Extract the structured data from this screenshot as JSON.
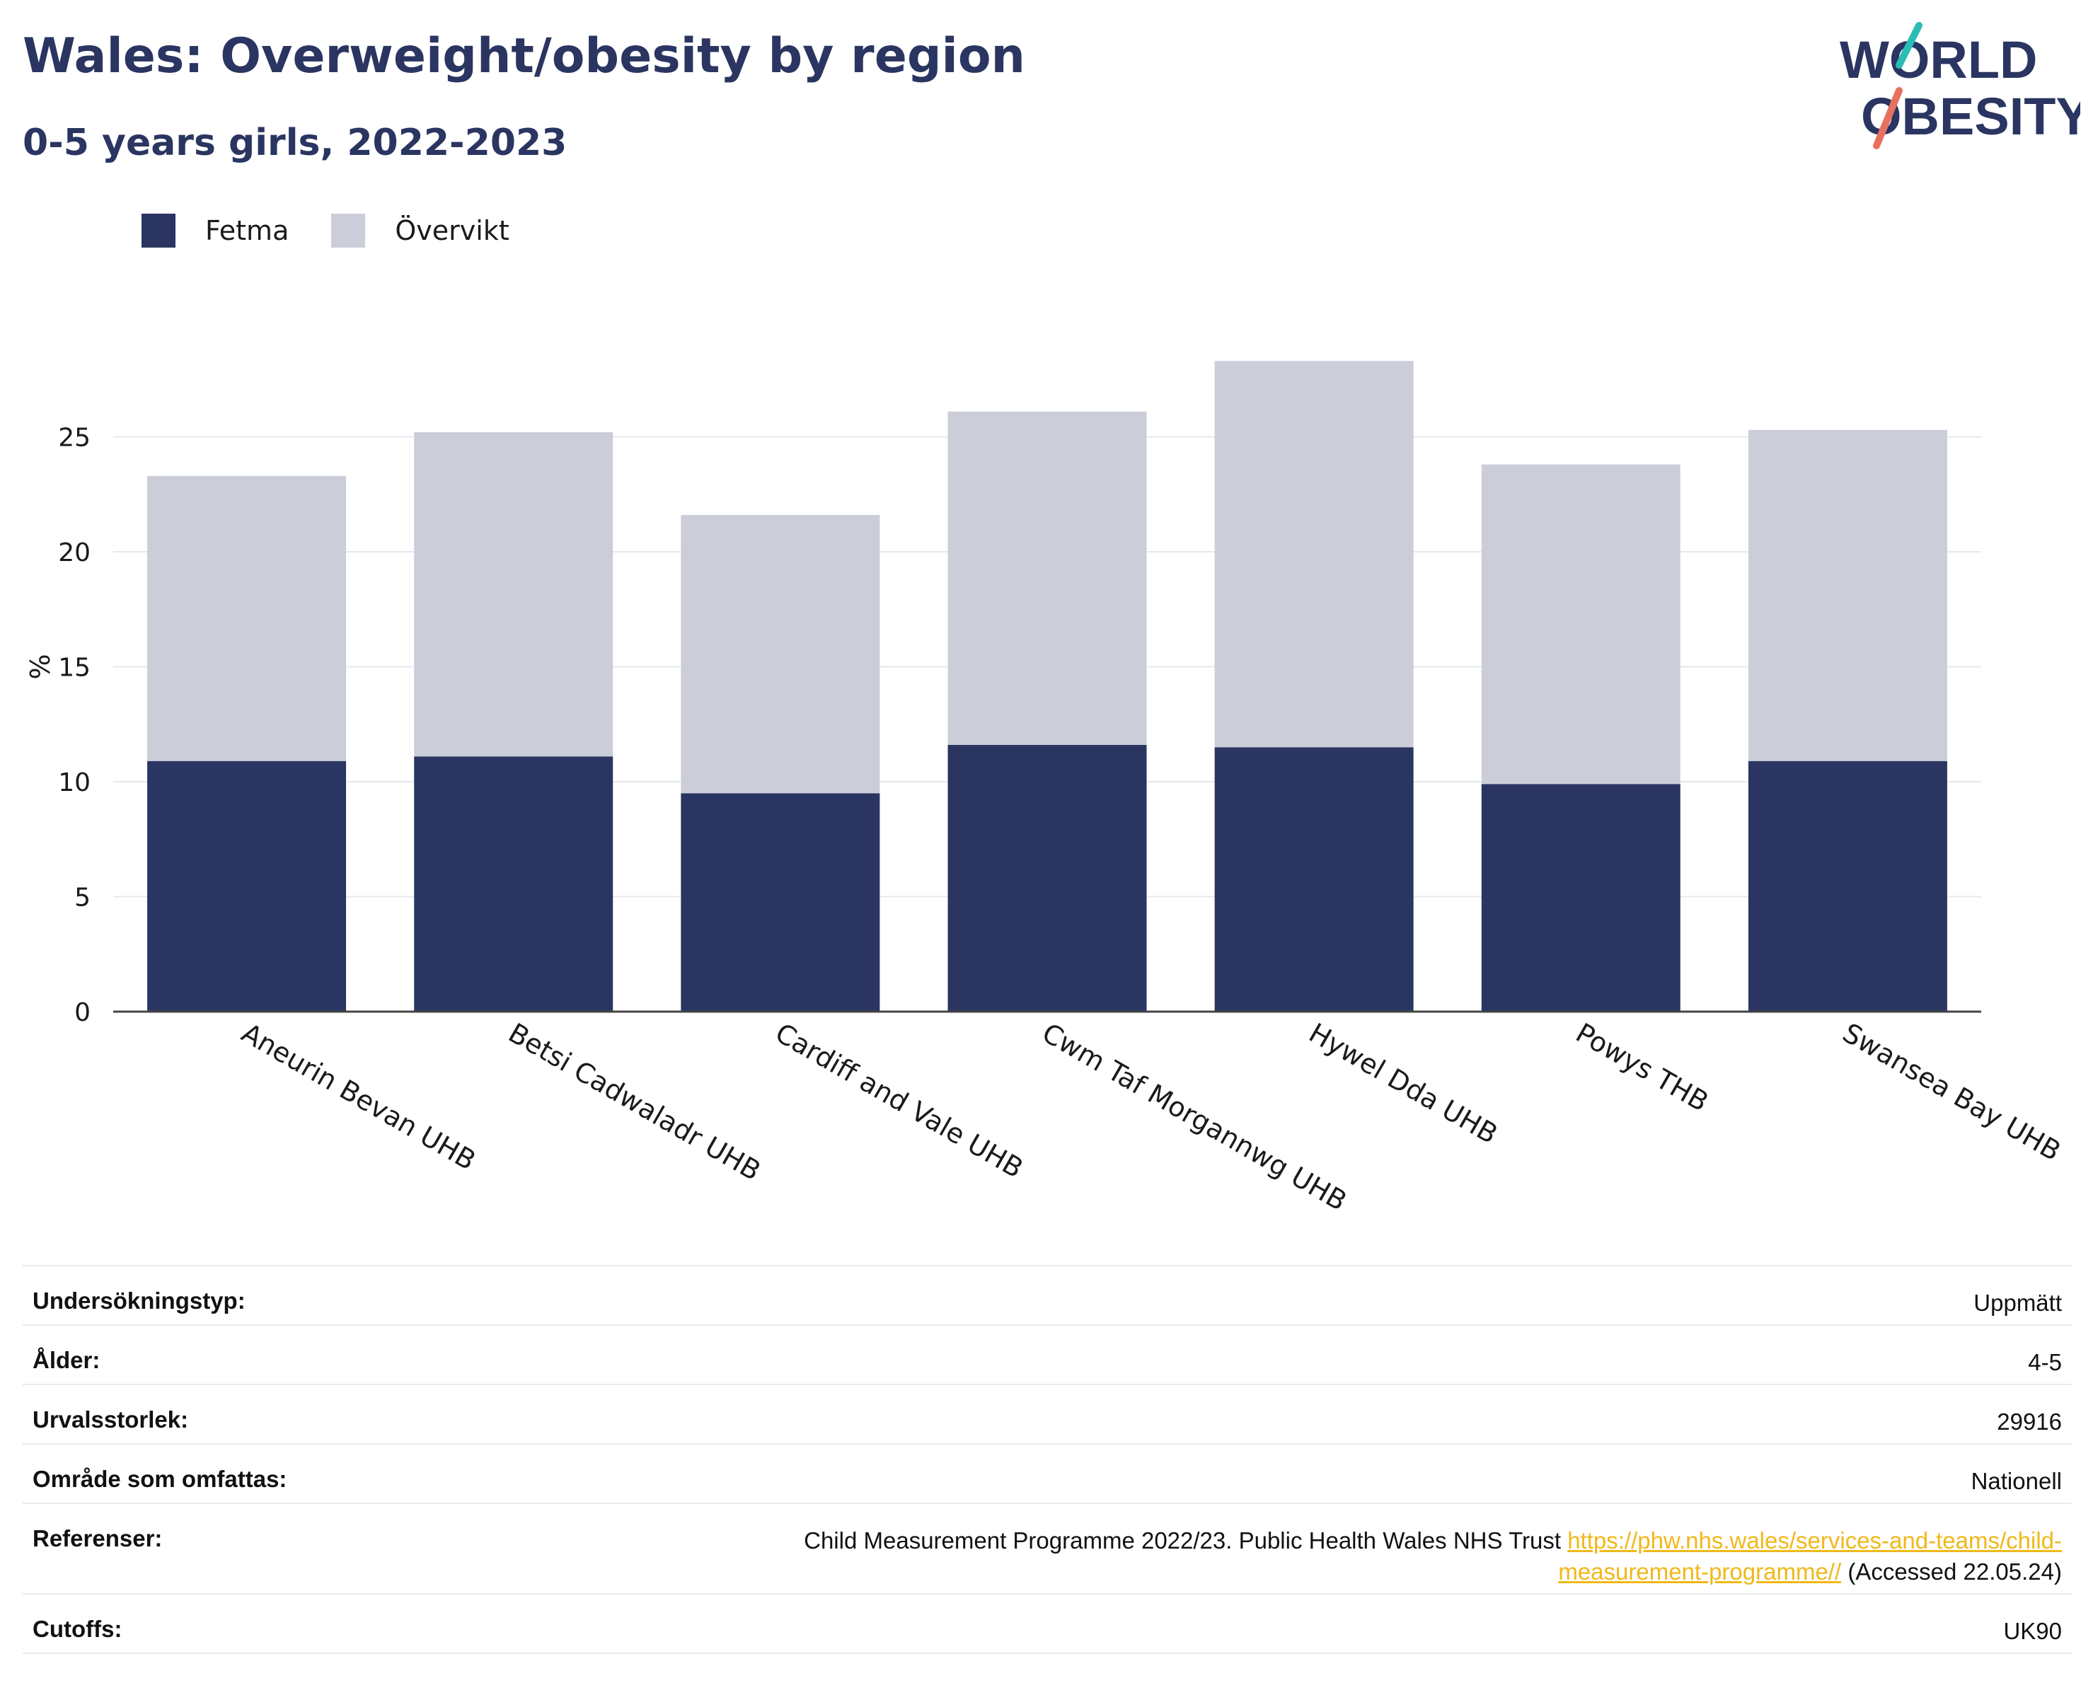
{
  "header": {
    "title": "Wales: Overweight/obesity by region",
    "subtitle": "0-5 years girls, 2022-2023"
  },
  "logo": {
    "line1": "WORLD",
    "line2": "OBESITY"
  },
  "colors": {
    "fetma": "#2a3561",
    "overvikt": "#cbcdd9",
    "logo_teal": "#2abdb6",
    "logo_coral": "#e8705f",
    "link": "#f0b81a"
  },
  "chart_data": {
    "type": "bar",
    "stacked": true,
    "categories": [
      "Aneurin Bevan UHB",
      "Betsi Cadwaladr UHB",
      "Cardiff and Vale UHB",
      "Cwm Taf Morgannwg UHB",
      "Hywel Dda UHB",
      "Powys THB",
      "Swansea Bay UHB"
    ],
    "series": [
      {
        "name": "Fetma",
        "values": [
          10.9,
          11.1,
          9.5,
          11.6,
          11.5,
          9.9,
          10.9
        ]
      },
      {
        "name": "Övervikt",
        "values": [
          12.4,
          14.1,
          12.1,
          14.5,
          16.8,
          13.9,
          14.4
        ]
      }
    ],
    "ylabel": "%",
    "yticks": [
      0,
      5,
      10,
      15,
      20,
      25
    ],
    "ylim": [
      0,
      29.5
    ],
    "grid": true,
    "legend": "top-left"
  },
  "meta": {
    "rows": [
      {
        "label": "Undersökningstyp:",
        "value": "Uppmätt"
      },
      {
        "label": "Ålder:",
        "value": "4-5"
      },
      {
        "label": "Urvalsstorlek:",
        "value": "29916"
      },
      {
        "label": "Område som omfattas:",
        "value": "Nationell"
      }
    ],
    "references": {
      "label": "Referenser:",
      "text": "Child Measurement Programme 2022/23. Public Health Wales NHS Trust",
      "link_line1": "https://phw.nhs.wales/services-and-teams/child-",
      "link_line2": "measurement-programme//",
      "accessed": "(Accessed 22.05.24)"
    },
    "cutoffs": {
      "label": "Cutoffs:",
      "value": "UK90"
    }
  }
}
